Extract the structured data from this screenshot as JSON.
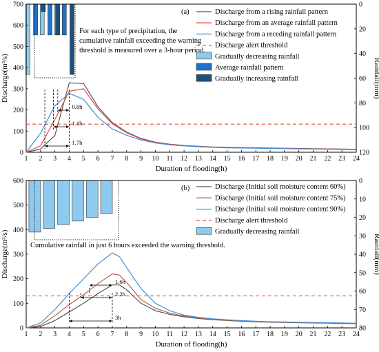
{
  "chart_data": [
    {
      "type": "line",
      "panel_label": "(a)",
      "xlabel": "Duration of flooding(h)",
      "ylabel": "Discharge(m³/s)",
      "y2label": "Rainfall(mm)",
      "xlim": [
        1,
        24
      ],
      "ylim": [
        0,
        700
      ],
      "y2lim": [
        120,
        0
      ],
      "x_ticks": [
        1,
        2,
        3,
        4,
        5,
        6,
        7,
        8,
        9,
        10,
        11,
        12,
        13,
        14,
        15,
        16,
        17,
        18,
        19,
        20,
        21,
        22,
        23,
        24
      ],
      "y_ticks": [
        0,
        100,
        200,
        300,
        400,
        500,
        600,
        700
      ],
      "y2_ticks": [
        0,
        20,
        40,
        60,
        80,
        100,
        120
      ],
      "annotation": "For each type of precipitation, the cumulative rainfall exceeding the warning threshold is measured over a 3-hour period.",
      "series": [
        {
          "name": "Discharge from a rising rainfall pattern",
          "color": "#555555",
          "x": [
            1,
            2,
            3,
            4,
            5,
            6,
            7,
            8,
            9,
            10,
            11,
            12,
            13,
            14,
            15,
            16,
            17,
            18,
            19,
            20,
            21,
            22,
            23,
            24
          ],
          "values": [
            0,
            15,
            80,
            328,
            325,
            215,
            140,
            95,
            65,
            48,
            38,
            32,
            28,
            25,
            23,
            22,
            21,
            20,
            19,
            18,
            17,
            16,
            15,
            14
          ]
        },
        {
          "name": "Discharge from an average rainfall pattern",
          "color": "#e8453c",
          "x": [
            1,
            2,
            3,
            4,
            5,
            6,
            7,
            8,
            9,
            10,
            11,
            12,
            13,
            14,
            15,
            16,
            17,
            18,
            19,
            20,
            21,
            22,
            23,
            24
          ],
          "values": [
            0,
            30,
            155,
            288,
            300,
            205,
            135,
            92,
            63,
            47,
            37,
            31,
            27,
            24,
            22,
            21,
            20,
            19,
            18,
            17,
            16,
            15,
            14,
            13
          ]
        },
        {
          "name": "Discharge from a receding rainfall pattern",
          "color": "#3c8fd8",
          "x": [
            1,
            2,
            3,
            4,
            5,
            6,
            7,
            8,
            9,
            10,
            11,
            12,
            13,
            14,
            15,
            16,
            17,
            18,
            19,
            20,
            21,
            22,
            23,
            24
          ],
          "values": [
            0,
            90,
            220,
            278,
            250,
            165,
            110,
            80,
            58,
            44,
            35,
            30,
            26,
            23,
            21,
            20,
            19,
            18,
            17,
            16,
            15,
            14,
            13,
            12
          ]
        },
        {
          "name": "Discharge alert threshold",
          "color": "#e8453c",
          "style": "dashed",
          "value": 133
        }
      ],
      "rainfall_bars": [
        {
          "name": "Gradually decreasing rainfall",
          "color": "#8ec9ee",
          "x": [
            1.5,
            2.5,
            3.5
          ],
          "values": [
            57,
            25,
            25
          ]
        },
        {
          "name": "Average rainfall pattern",
          "color": "#1e72c8",
          "x": [
            1.75,
            2.75,
            3.75
          ],
          "values": [
            25,
            25,
            25
          ]
        },
        {
          "name": "Gradually increasing rainfall",
          "color": "#1e4e7a",
          "x": [
            2,
            3,
            4
          ],
          "values": [
            6,
            25,
            57
          ]
        }
      ],
      "time_markers": [
        {
          "label": "0.8h",
          "from": 3.2,
          "to": 4.0
        },
        {
          "label": "1.1h",
          "from": 2.9,
          "to": 4.0
        },
        {
          "label": "1.7h",
          "from": 2.3,
          "to": 4.0
        }
      ]
    },
    {
      "type": "line",
      "panel_label": "(b)",
      "xlabel": "Duration of flooding(h)",
      "ylabel": "Discharge(m³/s)",
      "y2label": "Rainfall(mm)",
      "xlim": [
        1,
        24
      ],
      "ylim": [
        0,
        600
      ],
      "y2lim": [
        80,
        0
      ],
      "x_ticks": [
        1,
        2,
        3,
        4,
        5,
        6,
        7,
        8,
        9,
        10,
        11,
        12,
        13,
        14,
        15,
        16,
        17,
        18,
        19,
        20,
        21,
        22,
        23,
        24
      ],
      "y_ticks": [
        0,
        100,
        200,
        300,
        400,
        500,
        600
      ],
      "y2_ticks": [
        0,
        10,
        20,
        30,
        40,
        50,
        60,
        70,
        80
      ],
      "annotation": "Cumulative rainfall in just 6 hours exceeded the warning threshold.",
      "series": [
        {
          "name": "Discharge (Initial soil moisture content 60%)",
          "color": "#555555",
          "x": [
            1,
            2,
            3,
            4,
            5,
            6,
            7,
            7.5,
            8,
            9,
            10,
            11,
            12,
            13,
            14,
            15,
            16,
            17,
            18,
            19,
            20,
            21,
            22,
            23,
            24
          ],
          "values": [
            0,
            5,
            30,
            65,
            100,
            140,
            175,
            175,
            155,
            100,
            70,
            55,
            45,
            38,
            33,
            30,
            27,
            25,
            23,
            22,
            21,
            20,
            19,
            18,
            17
          ]
        },
        {
          "name": "Discharge (Initial soil moisture content 75%)",
          "color": "#b5614b",
          "x": [
            1,
            2,
            3,
            4,
            5,
            6,
            7,
            7.5,
            8,
            9,
            10,
            11,
            12,
            13,
            14,
            15,
            16,
            17,
            18,
            19,
            20,
            21,
            22,
            23,
            24
          ],
          "values": [
            0,
            10,
            50,
            95,
            135,
            180,
            220,
            215,
            185,
            115,
            80,
            60,
            48,
            40,
            35,
            31,
            28,
            26,
            24,
            23,
            22,
            21,
            20,
            19,
            18
          ]
        },
        {
          "name": "Discharge (Initial soil moisture content 90%)",
          "color": "#3c8fd8",
          "x": [
            1,
            2,
            3,
            4,
            5,
            6,
            7,
            7.5,
            8,
            9,
            10,
            11,
            12,
            13,
            14,
            15,
            16,
            17,
            18,
            19,
            20,
            21,
            22,
            23,
            24
          ],
          "values": [
            0,
            20,
            75,
            140,
            200,
            260,
            305,
            290,
            245,
            160,
            100,
            70,
            52,
            43,
            37,
            33,
            30,
            27,
            25,
            24,
            23,
            22,
            21,
            20,
            19
          ]
        },
        {
          "name": "Discharge alert threshold",
          "color": "#e8453c",
          "style": "dashed",
          "value": 130
        }
      ],
      "rainfall_bars": [
        {
          "name": "Gradually decreasing rainfall",
          "color": "#8ec9ee",
          "x": [
            1.5,
            2.5,
            3.5,
            4.5,
            5.5,
            6.5
          ],
          "values": [
            28,
            26,
            24,
            22,
            20,
            18
          ]
        }
      ],
      "time_markers": [
        {
          "label": "1.6h",
          "from": 5.4,
          "to": 7.0
        },
        {
          "label": "2.2h",
          "from": 4.8,
          "to": 7.0
        },
        {
          "label": "3h",
          "from": 4.0,
          "to": 7.0
        }
      ]
    }
  ]
}
